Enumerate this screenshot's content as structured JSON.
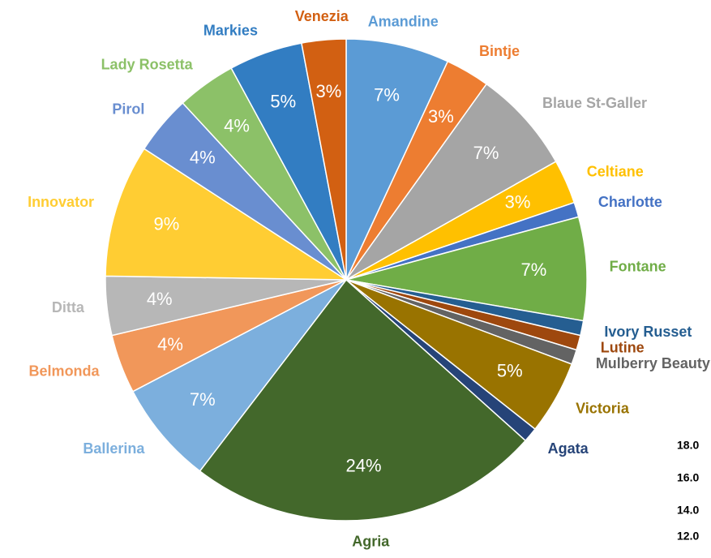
{
  "chart_data": {
    "type": "pie",
    "categories": [
      "Amandine",
      "Bintje",
      "Blaue St-Galler",
      "Celtiane",
      "Charlotte",
      "Fontane",
      "Ivory Russet",
      "Lutine",
      "Mulberry Beauty",
      "Victoria",
      "Agata",
      "Agria",
      "Ballerina",
      "Belmonda",
      "Ditta",
      "Innovator",
      "Pirol",
      "Lady Rosetta",
      "Markies",
      "Venezia"
    ],
    "values": [
      7,
      3,
      7,
      3,
      1,
      7,
      1,
      1,
      1,
      5,
      1,
      24,
      7,
      4,
      4,
      9,
      4,
      4,
      5,
      3
    ],
    "value_labels": [
      "7%",
      "3%",
      "7%",
      "3%",
      null,
      "7%",
      null,
      null,
      null,
      "5%",
      null,
      "24%",
      "7%",
      "4%",
      "4%",
      "9%",
      "4%",
      "4%",
      "5%",
      "3%"
    ],
    "colors": [
      "#5b9bd5",
      "#ed7d31",
      "#a5a5a5",
      "#ffc000",
      "#4472c4",
      "#70ad47",
      "#255e91",
      "#9e480e",
      "#636363",
      "#997300",
      "#264478",
      "#43682b",
      "#7cafdd",
      "#f1975a",
      "#b7b7b7",
      "#ffcd33",
      "#698ed0",
      "#8cc168",
      "#327dc2",
      "#d26012"
    ],
    "extra_labels": [
      "18.0",
      "16.0",
      "14.0",
      "12.0"
    ]
  }
}
